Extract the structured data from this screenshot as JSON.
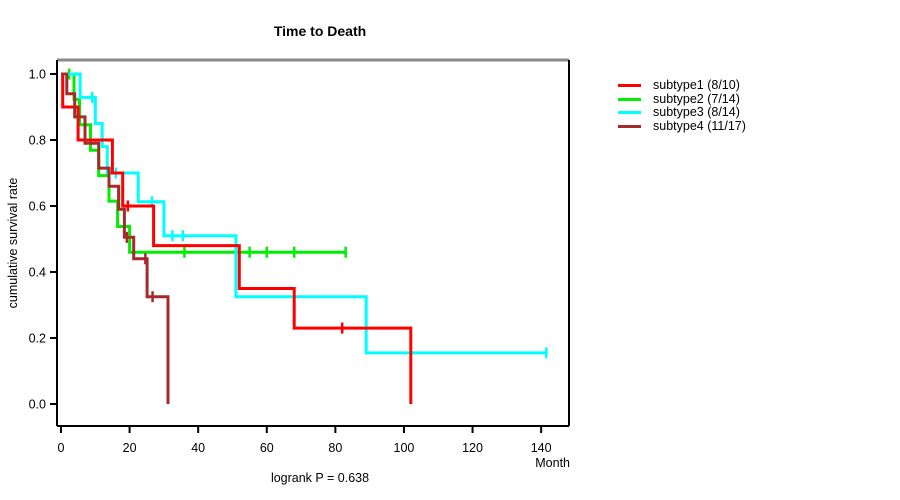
{
  "chart_data": {
    "type": "line",
    "variant": "kaplan-meier-step",
    "title": "Time to Death",
    "xlabel": "Month",
    "ylabel": "cumulative survival rate",
    "footer": "logrank P = 0.638",
    "xlim": [
      0,
      148
    ],
    "ylim": [
      0.0,
      1.0
    ],
    "xticks": [
      0,
      20,
      40,
      60,
      80,
      100,
      120,
      140
    ],
    "ytick_labels": [
      "0.0",
      "0.2",
      "0.4",
      "0.6",
      "0.8",
      "1.0"
    ],
    "ytick_values": [
      0.0,
      0.2,
      0.4,
      0.6,
      0.8,
      1.0
    ],
    "grid": false,
    "legend_position": "right-outside",
    "axis_color": "#000000",
    "top_border_color": "#8a8a8a",
    "series": [
      {
        "name": "subtype2 (7/14)",
        "legend_order": 2,
        "color": "#00ee00",
        "steps": [
          [
            0,
            1.0
          ],
          [
            3.8,
            0.923
          ],
          [
            5.4,
            0.846
          ],
          [
            8.6,
            0.769
          ],
          [
            11,
            0.692
          ],
          [
            14,
            0.615
          ],
          [
            16.5,
            0.538
          ],
          [
            20,
            0.46
          ]
        ],
        "end": 83,
        "censors": [
          [
            2.4,
            1.0
          ],
          [
            36,
            0.46
          ],
          [
            51,
            0.46
          ],
          [
            55,
            0.46
          ],
          [
            60,
            0.46
          ],
          [
            68,
            0.46
          ],
          [
            83,
            0.46
          ]
        ]
      },
      {
        "name": "subtype3 (8/14)",
        "legend_order": 3,
        "color": "#00ffff",
        "steps": [
          [
            0,
            1.0
          ],
          [
            5.6,
            0.929
          ],
          [
            10,
            0.85
          ],
          [
            12,
            0.78
          ],
          [
            13.5,
            0.7
          ],
          [
            22.5,
            0.613
          ],
          [
            30,
            0.51
          ],
          [
            51,
            0.325
          ],
          [
            89,
            0.155
          ]
        ],
        "end": 141.5,
        "censors": [
          [
            9.1,
            0.929
          ],
          [
            16,
            0.7
          ],
          [
            26.5,
            0.613
          ],
          [
            32.5,
            0.51
          ],
          [
            35.5,
            0.51
          ],
          [
            141.5,
            0.155
          ]
        ]
      },
      {
        "name": "subtype1 (8/10)",
        "legend_order": 1,
        "color": "#ff0000",
        "steps": [
          [
            0,
            1.0
          ],
          [
            0.5,
            0.9
          ],
          [
            5,
            0.8
          ],
          [
            15,
            0.7
          ],
          [
            18,
            0.6
          ],
          [
            27,
            0.48
          ],
          [
            52,
            0.35
          ],
          [
            68,
            0.23
          ],
          [
            102,
            0.0
          ]
        ],
        "end": 102,
        "censors": [
          [
            19.5,
            0.6
          ],
          [
            82,
            0.23
          ]
        ]
      },
      {
        "name": "subtype4 (11/17)",
        "legend_order": 4,
        "color": "#a52a2a",
        "steps": [
          [
            0,
            1.0
          ],
          [
            1.7,
            0.94
          ],
          [
            4,
            0.87
          ],
          [
            7,
            0.79
          ],
          [
            11,
            0.715
          ],
          [
            14,
            0.66
          ],
          [
            16.8,
            0.59
          ],
          [
            18.5,
            0.505
          ],
          [
            21.2,
            0.44
          ],
          [
            25.1,
            0.325
          ],
          [
            31.2,
            0.0
          ]
        ],
        "end": 31.2,
        "censors": [
          [
            19.2,
            0.505
          ],
          [
            24.6,
            0.44
          ],
          [
            26.7,
            0.325
          ]
        ]
      }
    ]
  }
}
